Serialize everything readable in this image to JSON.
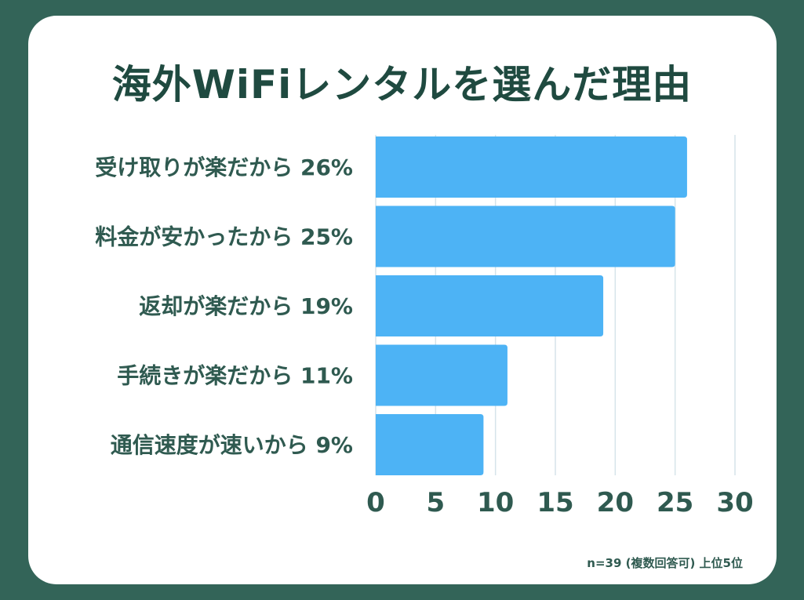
{
  "title": "海外WiFiレンタルを選んだ理由",
  "footnote": "n=39 (複数回答可) 上位5位",
  "colors": {
    "background": "#336458",
    "card": "#ffffff",
    "bar": "#4db3f5",
    "text": "#2f5a50",
    "grid": "#d6e4ea"
  },
  "chart_data": {
    "type": "bar",
    "orientation": "horizontal",
    "categories": [
      "受け取りが楽だから 26%",
      "料金が安かったから 25%",
      "返却が楽だから 19%",
      "手続きが楽だから 11%",
      "通信速度が速いから 9%"
    ],
    "values": [
      26,
      25,
      19,
      11,
      9
    ],
    "xlim": [
      0,
      30
    ],
    "xticks": [
      "0",
      "5",
      "10",
      "15",
      "20",
      "25",
      "30"
    ],
    "grid": "vertical",
    "xlabel": "",
    "ylabel": ""
  }
}
